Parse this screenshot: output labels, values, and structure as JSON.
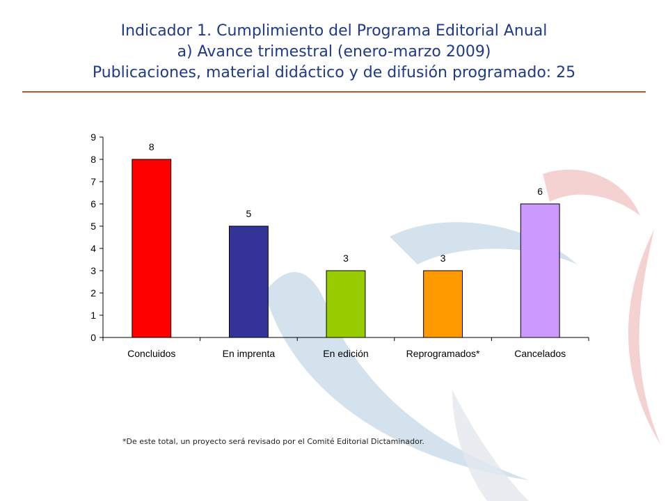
{
  "title": {
    "line1": "Indicador 1. Cumplimiento del Programa Editorial Anual",
    "line2": "a) Avance trimestral (enero-marzo 2009)",
    "line3": "Publicaciones, material didáctico y de difusión programado: 25"
  },
  "footnote": "*De este total, un proyecto será revisado por el Comité Editorial Dictaminador.",
  "colors": {
    "title": "#1f3a8a",
    "rule": "#c0502a",
    "bars": [
      "#ff0000",
      "#333399",
      "#99cc00",
      "#ff9900",
      "#cc99ff"
    ]
  },
  "chart_data": {
    "type": "bar",
    "categories": [
      "Concluidos",
      "En imprenta",
      "En edición",
      "Reprogramados*",
      "Cancelados"
    ],
    "values": [
      8,
      5,
      3,
      3,
      6
    ],
    "data_labels": [
      "8",
      "5",
      "3",
      "3",
      "6"
    ],
    "y_ticks": [
      "0",
      "1",
      "2",
      "3",
      "4",
      "5",
      "6",
      "7",
      "8",
      "9"
    ],
    "ylim": [
      0,
      9
    ],
    "grid": false,
    "legend": "none"
  }
}
